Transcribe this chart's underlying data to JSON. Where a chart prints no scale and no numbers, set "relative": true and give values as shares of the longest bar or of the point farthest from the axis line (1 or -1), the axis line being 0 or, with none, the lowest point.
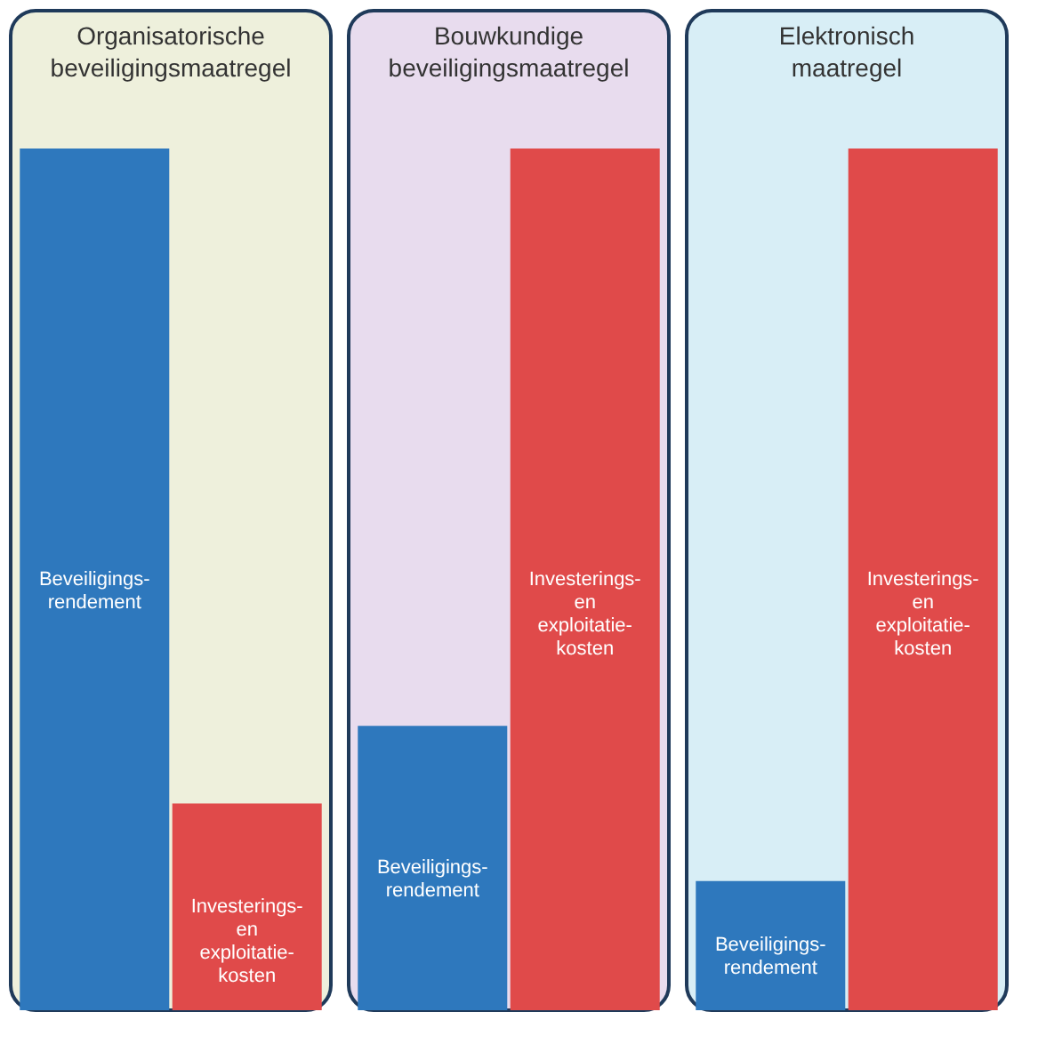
{
  "chart_data": [
    {
      "type": "bar",
      "title": "Organisatorische beveiligingsmaatregel",
      "relative": true,
      "tick_labels": false,
      "categories": [
        null,
        null
      ],
      "values": [
        1,
        0.24
      ],
      "colors": [
        "#2e78bd",
        "#e04a4a"
      ],
      "annotations": [
        "Beveiligings-\nrendement",
        "Investerings-\nen\nexploitatie-\nkosten"
      ]
    },
    {
      "type": "bar",
      "title": "Bouwkundige beveiligingsmaatregel",
      "relative": true,
      "tick_labels": false,
      "categories": [
        null,
        null
      ],
      "values": [
        0.33,
        1
      ],
      "colors": [
        "#2e78bd",
        "#e04a4a"
      ],
      "annotations": [
        "Beveiligings-\nrendement",
        "Investerings-\nen\nexploitatie-\nkosten"
      ]
    },
    {
      "type": "bar",
      "title": "Elektronisch maatregel",
      "relative": true,
      "tick_labels": false,
      "categories": [
        null,
        null
      ],
      "values": [
        0.15,
        1
      ],
      "colors": [
        "#2e78bd",
        "#e04a4a"
      ],
      "annotations": [
        "Beveiligings-\nrendement",
        "Investerings-\nen\nexploitatie-\nkosten"
      ]
    }
  ]
}
